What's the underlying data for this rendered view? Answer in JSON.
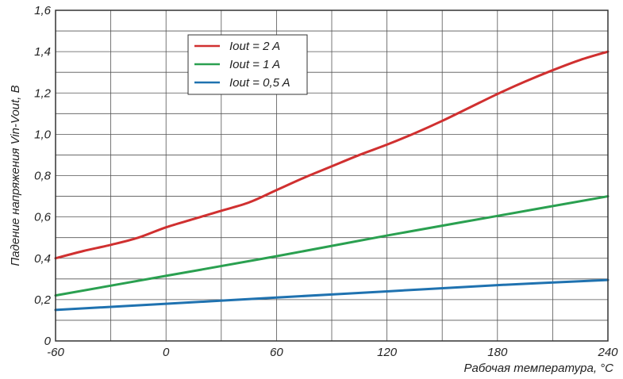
{
  "chart_data": {
    "type": "line",
    "title": "",
    "xlabel": "Рабочая температура, °С",
    "ylabel": "Падение напряжения Vin-Vout, В",
    "xlim": [
      -60,
      240
    ],
    "ylim": [
      0,
      1.6
    ],
    "x_ticks": [
      -60,
      0,
      60,
      120,
      180,
      240
    ],
    "x_tick_labels": [
      "-60",
      "0",
      "60",
      "120",
      "180",
      "240"
    ],
    "y_ticks": [
      0,
      0.2,
      0.4,
      0.6,
      0.8,
      1.0,
      1.2,
      1.4,
      1.6
    ],
    "y_tick_labels": [
      "0",
      "0,2",
      "0,4",
      "0,6",
      "0,8",
      "1,0",
      "1,2",
      "1,4",
      "1,6"
    ],
    "grid": true,
    "legend_position": "top-left",
    "series": [
      {
        "name": "Iout = 2 A",
        "color": "#d03030",
        "x": [
          -60,
          -45,
          -30,
          -15,
          0,
          15,
          30,
          45,
          60,
          75,
          90,
          105,
          120,
          135,
          150,
          165,
          180,
          195,
          210,
          225,
          240
        ],
        "values": [
          0.4,
          0.435,
          0.465,
          0.5,
          0.55,
          0.59,
          0.63,
          0.67,
          0.73,
          0.79,
          0.845,
          0.9,
          0.95,
          1.005,
          1.065,
          1.13,
          1.195,
          1.255,
          1.31,
          1.36,
          1.4
        ]
      },
      {
        "name": "Iout = 1 A",
        "color": "#2aa050",
        "x": [
          -60,
          0,
          60,
          120,
          180,
          240
        ],
        "values": [
          0.22,
          0.315,
          0.41,
          0.51,
          0.605,
          0.7
        ]
      },
      {
        "name": "Iout = 0,5 A",
        "color": "#1f72b0",
        "x": [
          -60,
          0,
          60,
          120,
          180,
          240
        ],
        "values": [
          0.15,
          0.18,
          0.21,
          0.24,
          0.27,
          0.295
        ]
      }
    ]
  }
}
